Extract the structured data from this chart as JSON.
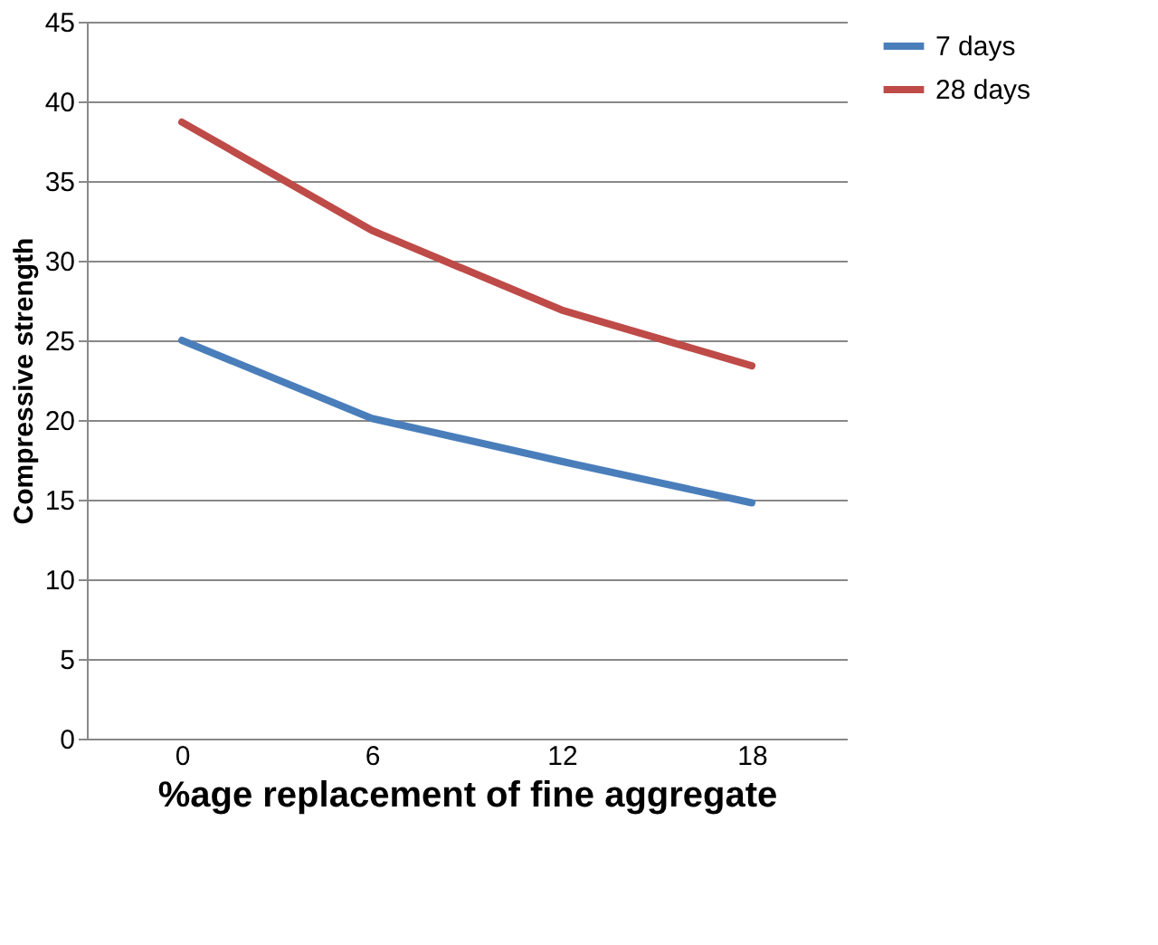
{
  "chart_data": {
    "type": "line",
    "xlabel": "%age replacement of fine aggregate",
    "ylabel": "Compressive strength",
    "categories": [
      "0",
      "6",
      "12",
      "18"
    ],
    "series": [
      {
        "name": "7 days",
        "color": "#4a7ebb",
        "values": [
          25,
          20.1,
          17.4,
          14.8
        ]
      },
      {
        "name": "28 days",
        "color": "#be4b48",
        "values": [
          38.7,
          31.9,
          26.9,
          23.4
        ]
      }
    ],
    "ylim": [
      0,
      45
    ],
    "yticks": [
      0,
      5,
      10,
      15,
      20,
      25,
      30,
      35,
      40,
      45
    ],
    "grid": "y",
    "legend": "right",
    "marker": "none",
    "line_style": "solid"
  }
}
